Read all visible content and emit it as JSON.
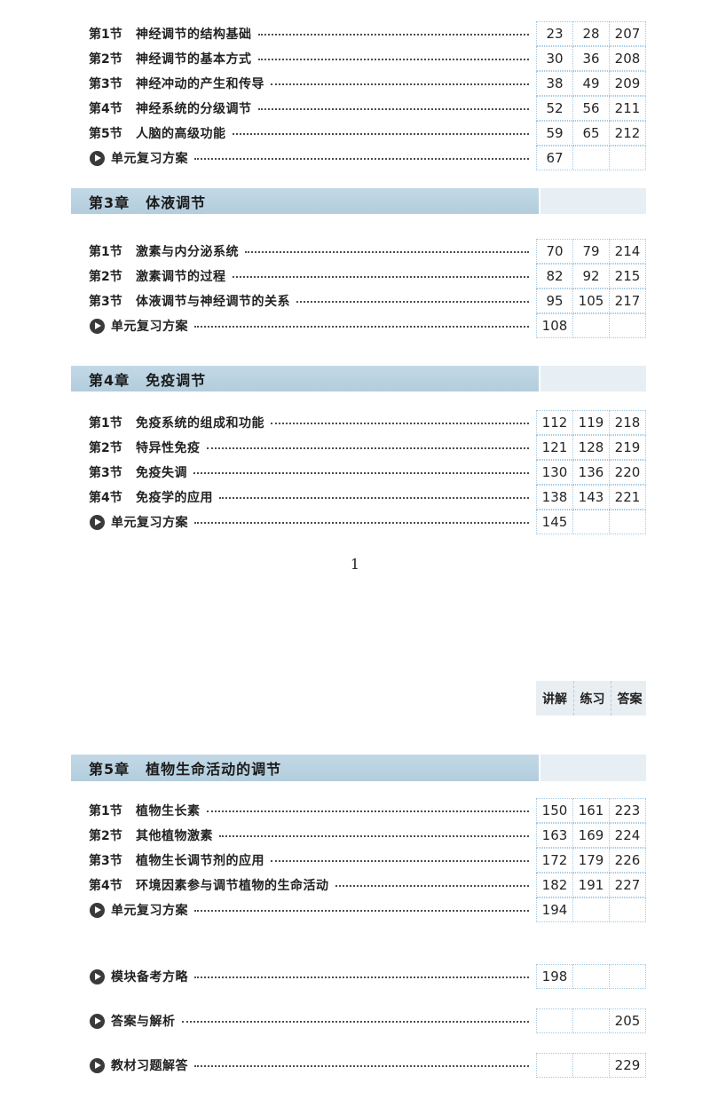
{
  "colors": {
    "band_main": "#b8d0df",
    "band_right": "#e7eef4",
    "grid_border": "#a3c9e3",
    "strip_bg": "#e9eef3"
  },
  "columns_header": {
    "labels": [
      "讲解",
      "练习",
      "答案"
    ]
  },
  "page1": {
    "page_number": "1",
    "chapter2_sections": [
      {
        "label": "第1节",
        "title": "神经调节的结构基础",
        "nums": [
          "23",
          "28",
          "207"
        ]
      },
      {
        "label": "第2节",
        "title": "神经调节的基本方式",
        "nums": [
          "30",
          "36",
          "208"
        ]
      },
      {
        "label": "第3节",
        "title": "神经冲动的产生和传导",
        "nums": [
          "38",
          "49",
          "209"
        ]
      },
      {
        "label": "第4节",
        "title": "神经系统的分级调节",
        "nums": [
          "52",
          "56",
          "211"
        ]
      },
      {
        "label": "第5节",
        "title": "人脑的高级功能",
        "nums": [
          "59",
          "65",
          "212"
        ]
      },
      {
        "review": true,
        "title": "单元复习方案",
        "nums": [
          "67",
          "",
          ""
        ]
      }
    ],
    "chapter3": {
      "number": "第3章",
      "title": "体液调节",
      "sections": [
        {
          "label": "第1节",
          "title": "激素与内分泌系统",
          "nums": [
            "70",
            "79",
            "214"
          ]
        },
        {
          "label": "第2节",
          "title": "激素调节的过程",
          "nums": [
            "82",
            "92",
            "215"
          ]
        },
        {
          "label": "第3节",
          "title": "体液调节与神经调节的关系",
          "nums": [
            "95",
            "105",
            "217"
          ]
        },
        {
          "review": true,
          "title": "单元复习方案",
          "nums": [
            "108",
            "",
            ""
          ]
        }
      ]
    },
    "chapter4": {
      "number": "第4章",
      "title": "免疫调节",
      "sections": [
        {
          "label": "第1节",
          "title": "免疫系统的组成和功能",
          "nums": [
            "112",
            "119",
            "218"
          ]
        },
        {
          "label": "第2节",
          "title": "特异性免疫",
          "nums": [
            "121",
            "128",
            "219"
          ]
        },
        {
          "label": "第3节",
          "title": "免疫失调",
          "nums": [
            "130",
            "136",
            "220"
          ]
        },
        {
          "label": "第4节",
          "title": "免疫学的应用",
          "nums": [
            "138",
            "143",
            "221"
          ]
        },
        {
          "review": true,
          "title": "单元复习方案",
          "nums": [
            "145",
            "",
            ""
          ]
        }
      ]
    }
  },
  "page2": {
    "chapter5": {
      "number": "第5章",
      "title": "植物生命活动的调节",
      "sections": [
        {
          "label": "第1节",
          "title": "植物生长素",
          "nums": [
            "150",
            "161",
            "223"
          ]
        },
        {
          "label": "第2节",
          "title": "其他植物激素",
          "nums": [
            "163",
            "169",
            "224"
          ]
        },
        {
          "label": "第3节",
          "title": "植物生长调节剂的应用",
          "nums": [
            "172",
            "179",
            "226"
          ]
        },
        {
          "label": "第4节",
          "title": "环境因素参与调节植物的生命活动",
          "nums": [
            "182",
            "191",
            "227"
          ]
        },
        {
          "review": true,
          "title": "单元复习方案",
          "nums": [
            "194",
            "",
            ""
          ]
        }
      ]
    },
    "extras": [
      {
        "review": true,
        "title": "模块备考方略",
        "nums": [
          "198",
          "",
          ""
        ]
      },
      {
        "review": true,
        "title": "答案与解析",
        "nums": [
          "",
          "",
          "205"
        ]
      },
      {
        "review": true,
        "title": "教材习题解答",
        "nums": [
          "",
          "",
          "229"
        ]
      }
    ]
  }
}
